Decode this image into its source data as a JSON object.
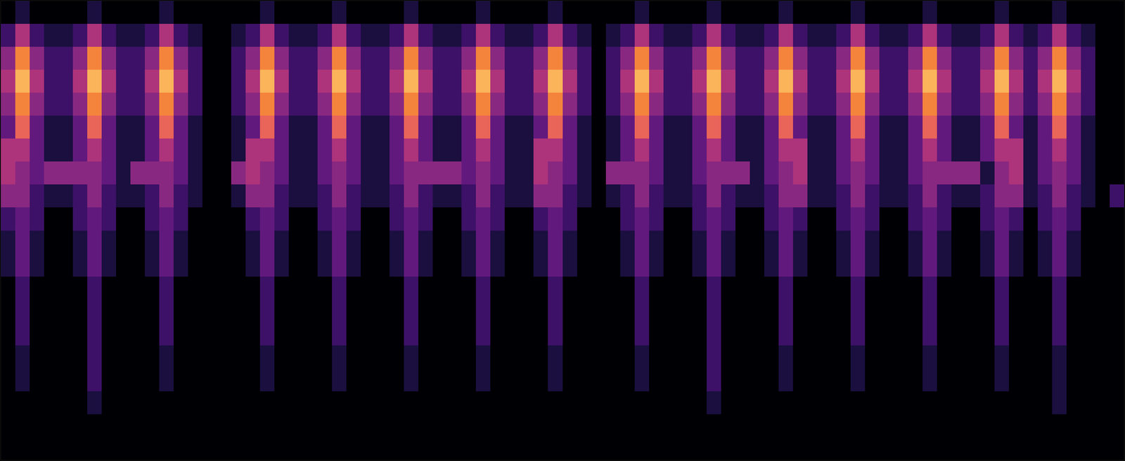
{
  "chart_data": {
    "type": "heatmap",
    "xlim": [
      -0.5,
      77.5
    ],
    "ylim": [
      19.5,
      -0.5
    ],
    "zlim": [
      0,
      9
    ],
    "tick_labels": false,
    "grid": false,
    "z": [
      [
        0,
        1,
        0,
        0,
        0,
        0,
        1,
        0,
        0,
        0,
        0,
        1,
        0,
        0,
        0,
        0,
        0,
        0,
        1,
        0,
        0,
        0,
        0,
        1,
        0,
        0,
        0,
        0,
        1,
        0,
        0,
        0,
        0,
        1,
        0,
        0,
        0,
        0,
        1,
        0,
        0,
        0,
        0,
        0,
        1,
        0,
        0,
        0,
        0,
        1,
        0,
        0,
        0,
        0,
        1,
        0,
        0,
        0,
        0,
        1,
        0,
        0,
        0,
        0,
        1,
        0,
        0,
        0,
        0,
        1,
        0,
        0,
        0,
        1,
        0,
        0,
        0,
        0
      ],
      [
        2,
        5,
        2,
        1,
        1,
        2,
        5,
        2,
        1,
        1,
        2,
        5,
        2,
        1,
        0,
        0,
        1,
        2,
        5,
        2,
        1,
        1,
        2,
        5,
        2,
        1,
        1,
        2,
        5,
        2,
        1,
        1,
        2,
        5,
        2,
        1,
        1,
        2,
        5,
        2,
        1,
        0,
        1,
        2,
        5,
        2,
        1,
        1,
        2,
        5,
        2,
        1,
        1,
        2,
        5,
        2,
        1,
        1,
        2,
        5,
        2,
        1,
        1,
        2,
        5,
        2,
        1,
        1,
        2,
        5,
        2,
        1,
        2,
        5,
        2,
        1,
        0,
        0
      ],
      [
        4,
        8,
        4,
        2,
        2,
        4,
        8,
        4,
        2,
        2,
        4,
        8,
        4,
        2,
        0,
        0,
        2,
        4,
        8,
        4,
        2,
        2,
        4,
        8,
        4,
        2,
        2,
        4,
        8,
        4,
        2,
        2,
        4,
        8,
        4,
        2,
        2,
        4,
        8,
        4,
        2,
        0,
        2,
        4,
        8,
        4,
        2,
        2,
        4,
        8,
        4,
        2,
        2,
        4,
        8,
        4,
        2,
        2,
        4,
        8,
        4,
        2,
        2,
        4,
        8,
        4,
        2,
        2,
        4,
        8,
        4,
        2,
        4,
        8,
        4,
        2,
        0,
        0
      ],
      [
        5,
        9,
        5,
        2,
        2,
        5,
        9,
        5,
        2,
        2,
        5,
        9,
        5,
        2,
        0,
        0,
        2,
        5,
        9,
        5,
        2,
        2,
        5,
        9,
        5,
        2,
        2,
        5,
        9,
        5,
        2,
        2,
        5,
        9,
        5,
        2,
        2,
        5,
        9,
        5,
        2,
        0,
        2,
        5,
        9,
        5,
        2,
        2,
        5,
        9,
        5,
        2,
        2,
        5,
        9,
        5,
        2,
        2,
        5,
        9,
        5,
        2,
        2,
        5,
        9,
        5,
        2,
        2,
        5,
        9,
        5,
        2,
        5,
        9,
        5,
        2,
        0,
        0
      ],
      [
        4,
        8,
        4,
        2,
        2,
        4,
        8,
        4,
        2,
        2,
        4,
        8,
        4,
        2,
        0,
        0,
        2,
        4,
        8,
        4,
        2,
        2,
        4,
        8,
        4,
        2,
        2,
        4,
        8,
        4,
        2,
        2,
        4,
        8,
        4,
        2,
        2,
        4,
        8,
        4,
        2,
        0,
        2,
        4,
        8,
        4,
        2,
        2,
        4,
        8,
        4,
        2,
        2,
        4,
        8,
        4,
        2,
        2,
        4,
        8,
        4,
        2,
        2,
        4,
        8,
        4,
        2,
        2,
        4,
        8,
        4,
        2,
        4,
        8,
        4,
        2,
        0,
        0
      ],
      [
        3,
        7,
        3,
        1,
        1,
        3,
        7,
        3,
        1,
        1,
        3,
        7,
        3,
        1,
        0,
        0,
        1,
        3,
        7,
        3,
        1,
        1,
        3,
        7,
        3,
        1,
        1,
        3,
        7,
        3,
        1,
        1,
        3,
        7,
        3,
        1,
        1,
        3,
        7,
        3,
        1,
        0,
        1,
        3,
        7,
        3,
        1,
        1,
        3,
        7,
        3,
        1,
        1,
        3,
        7,
        3,
        1,
        1,
        3,
        7,
        3,
        1,
        1,
        3,
        7,
        3,
        1,
        1,
        3,
        7,
        3,
        1,
        3,
        7,
        3,
        1,
        0,
        0
      ],
      [
        5,
        5,
        3,
        1,
        1,
        3,
        5,
        3,
        1,
        1,
        3,
        5,
        3,
        1,
        0,
        0,
        1,
        5,
        5,
        3,
        1,
        1,
        3,
        5,
        3,
        1,
        1,
        3,
        5,
        3,
        1,
        1,
        3,
        5,
        3,
        1,
        1,
        5,
        5,
        3,
        1,
        0,
        1,
        3,
        5,
        3,
        1,
        1,
        3,
        5,
        3,
        1,
        1,
        3,
        5,
        5,
        1,
        1,
        3,
        5,
        3,
        1,
        1,
        3,
        5,
        3,
        1,
        1,
        3,
        5,
        5,
        1,
        3,
        5,
        3,
        1,
        0,
        0
      ],
      [
        5,
        4,
        3,
        4,
        4,
        4,
        4,
        3,
        1,
        4,
        4,
        4,
        3,
        1,
        0,
        0,
        4,
        5,
        4,
        3,
        1,
        1,
        3,
        4,
        3,
        1,
        1,
        3,
        4,
        4,
        4,
        4,
        3,
        4,
        3,
        1,
        1,
        5,
        4,
        3,
        1,
        0,
        4,
        4,
        4,
        3,
        1,
        1,
        3,
        4,
        4,
        4,
        1,
        3,
        4,
        5,
        1,
        1,
        3,
        4,
        3,
        1,
        1,
        3,
        4,
        4,
        4,
        4,
        1,
        4,
        5,
        1,
        3,
        4,
        3,
        1,
        0,
        0
      ],
      [
        4,
        4,
        2,
        1,
        1,
        2,
        4,
        2,
        1,
        1,
        2,
        4,
        2,
        1,
        0,
        0,
        1,
        4,
        4,
        2,
        1,
        1,
        2,
        4,
        2,
        1,
        1,
        2,
        4,
        2,
        1,
        1,
        2,
        4,
        2,
        1,
        1,
        4,
        4,
        2,
        1,
        0,
        1,
        2,
        4,
        2,
        1,
        1,
        2,
        4,
        2,
        1,
        1,
        2,
        4,
        4,
        1,
        1,
        2,
        4,
        2,
        1,
        1,
        2,
        4,
        2,
        1,
        1,
        2,
        4,
        4,
        1,
        2,
        4,
        2,
        1,
        0,
        2
      ],
      [
        2,
        3,
        2,
        0,
        0,
        2,
        3,
        2,
        0,
        0,
        2,
        3,
        2,
        0,
        0,
        0,
        0,
        2,
        3,
        2,
        0,
        0,
        2,
        3,
        2,
        0,
        0,
        2,
        3,
        2,
        0,
        0,
        2,
        3,
        2,
        0,
        0,
        2,
        3,
        2,
        0,
        0,
        0,
        2,
        3,
        2,
        0,
        0,
        2,
        3,
        2,
        0,
        0,
        2,
        3,
        2,
        0,
        0,
        2,
        3,
        2,
        0,
        0,
        2,
        3,
        2,
        0,
        0,
        2,
        3,
        2,
        0,
        2,
        3,
        2,
        0,
        0,
        0
      ],
      [
        1,
        3,
        1,
        0,
        0,
        1,
        3,
        1,
        0,
        0,
        1,
        3,
        1,
        0,
        0,
        0,
        0,
        1,
        3,
        1,
        0,
        0,
        1,
        3,
        1,
        0,
        0,
        1,
        3,
        1,
        0,
        0,
        1,
        3,
        1,
        0,
        0,
        1,
        3,
        1,
        0,
        0,
        0,
        1,
        3,
        1,
        0,
        0,
        1,
        3,
        1,
        0,
        0,
        1,
        3,
        1,
        0,
        0,
        1,
        3,
        1,
        0,
        0,
        1,
        3,
        1,
        0,
        0,
        1,
        3,
        1,
        0,
        1,
        3,
        1,
        0,
        0,
        0
      ],
      [
        1,
        3,
        1,
        0,
        0,
        1,
        3,
        1,
        0,
        0,
        1,
        3,
        1,
        0,
        0,
        0,
        0,
        1,
        3,
        1,
        0,
        0,
        1,
        3,
        1,
        0,
        0,
        1,
        3,
        1,
        0,
        0,
        1,
        3,
        1,
        0,
        0,
        1,
        3,
        1,
        0,
        0,
        0,
        1,
        3,
        1,
        0,
        0,
        1,
        3,
        1,
        0,
        0,
        1,
        3,
        1,
        0,
        0,
        1,
        3,
        1,
        0,
        0,
        1,
        3,
        1,
        0,
        0,
        1,
        3,
        1,
        0,
        1,
        3,
        1,
        0,
        0,
        0
      ],
      [
        0,
        2,
        0,
        0,
        0,
        0,
        2,
        0,
        0,
        0,
        0,
        2,
        0,
        0,
        0,
        0,
        0,
        0,
        2,
        0,
        0,
        0,
        0,
        2,
        0,
        0,
        0,
        0,
        2,
        0,
        0,
        0,
        0,
        2,
        0,
        0,
        0,
        0,
        2,
        0,
        0,
        0,
        0,
        0,
        2,
        0,
        0,
        0,
        0,
        2,
        0,
        0,
        0,
        0,
        2,
        0,
        0,
        0,
        0,
        2,
        0,
        0,
        0,
        0,
        2,
        0,
        0,
        0,
        0,
        2,
        0,
        0,
        0,
        2,
        0,
        0,
        0,
        0
      ],
      [
        0,
        2,
        0,
        0,
        0,
        0,
        2,
        0,
        0,
        0,
        0,
        2,
        0,
        0,
        0,
        0,
        0,
        0,
        2,
        0,
        0,
        0,
        0,
        2,
        0,
        0,
        0,
        0,
        2,
        0,
        0,
        0,
        0,
        2,
        0,
        0,
        0,
        0,
        2,
        0,
        0,
        0,
        0,
        0,
        2,
        0,
        0,
        0,
        0,
        2,
        0,
        0,
        0,
        0,
        2,
        0,
        0,
        0,
        0,
        2,
        0,
        0,
        0,
        0,
        2,
        0,
        0,
        0,
        0,
        2,
        0,
        0,
        0,
        2,
        0,
        0,
        0,
        0
      ],
      [
        0,
        2,
        0,
        0,
        0,
        0,
        2,
        0,
        0,
        0,
        0,
        2,
        0,
        0,
        0,
        0,
        0,
        0,
        2,
        0,
        0,
        0,
        0,
        2,
        0,
        0,
        0,
        0,
        2,
        0,
        0,
        0,
        0,
        2,
        0,
        0,
        0,
        0,
        2,
        0,
        0,
        0,
        0,
        0,
        2,
        0,
        0,
        0,
        0,
        2,
        0,
        0,
        0,
        0,
        2,
        0,
        0,
        0,
        0,
        2,
        0,
        0,
        0,
        0,
        2,
        0,
        0,
        0,
        0,
        2,
        0,
        0,
        0,
        2,
        0,
        0,
        0,
        0
      ],
      [
        0,
        1,
        0,
        0,
        0,
        0,
        2,
        0,
        0,
        0,
        0,
        1,
        0,
        0,
        0,
        0,
        0,
        0,
        1,
        0,
        0,
        0,
        0,
        1,
        0,
        0,
        0,
        0,
        1,
        0,
        0,
        0,
        0,
        1,
        0,
        0,
        0,
        0,
        1,
        0,
        0,
        0,
        0,
        0,
        1,
        0,
        0,
        0,
        0,
        2,
        0,
        0,
        0,
        0,
        1,
        0,
        0,
        0,
        0,
        1,
        0,
        0,
        0,
        0,
        1,
        0,
        0,
        0,
        0,
        1,
        0,
        0,
        0,
        1,
        0,
        0,
        0,
        0
      ],
      [
        0,
        1,
        0,
        0,
        0,
        0,
        2,
        0,
        0,
        0,
        0,
        1,
        0,
        0,
        0,
        0,
        0,
        0,
        1,
        0,
        0,
        0,
        0,
        1,
        0,
        0,
        0,
        0,
        1,
        0,
        0,
        0,
        0,
        1,
        0,
        0,
        0,
        0,
        1,
        0,
        0,
        0,
        0,
        0,
        1,
        0,
        0,
        0,
        0,
        2,
        0,
        0,
        0,
        0,
        1,
        0,
        0,
        0,
        0,
        1,
        0,
        0,
        0,
        0,
        1,
        0,
        0,
        0,
        0,
        1,
        0,
        0,
        0,
        1,
        0,
        0,
        0,
        0
      ],
      [
        0,
        0,
        0,
        0,
        0,
        0,
        1,
        0,
        0,
        0,
        0,
        0,
        0,
        0,
        0,
        0,
        0,
        0,
        0,
        0,
        0,
        0,
        0,
        0,
        0,
        0,
        0,
        0,
        0,
        0,
        0,
        0,
        0,
        0,
        0,
        0,
        0,
        0,
        0,
        0,
        0,
        0,
        0,
        0,
        0,
        0,
        0,
        0,
        0,
        1,
        0,
        0,
        0,
        0,
        0,
        0,
        0,
        0,
        0,
        0,
        0,
        0,
        0,
        0,
        0,
        0,
        0,
        0,
        0,
        0,
        0,
        0,
        0,
        1,
        0,
        0,
        0,
        0
      ],
      [
        0,
        0,
        0,
        0,
        0,
        0,
        0,
        0,
        0,
        0,
        0,
        0,
        0,
        0,
        0,
        0,
        0,
        0,
        0,
        0,
        0,
        0,
        0,
        0,
        0,
        0,
        0,
        0,
        0,
        0,
        0,
        0,
        0,
        0,
        0,
        0,
        0,
        0,
        0,
        0,
        0,
        0,
        0,
        0,
        0,
        0,
        0,
        0,
        0,
        0,
        0,
        0,
        0,
        0,
        0,
        0,
        0,
        0,
        0,
        0,
        0,
        0,
        0,
        0,
        0,
        0,
        0,
        0,
        0,
        0,
        0,
        0,
        0,
        0,
        0,
        0,
        0,
        0
      ],
      [
        0,
        0,
        0,
        0,
        0,
        0,
        0,
        0,
        0,
        0,
        0,
        0,
        0,
        0,
        0,
        0,
        0,
        0,
        0,
        0,
        0,
        0,
        0,
        0,
        0,
        0,
        0,
        0,
        0,
        0,
        0,
        0,
        0,
        0,
        0,
        0,
        0,
        0,
        0,
        0,
        0,
        0,
        0,
        0,
        0,
        0,
        0,
        0,
        0,
        0,
        0,
        0,
        0,
        0,
        0,
        0,
        0,
        0,
        0,
        0,
        0,
        0,
        0,
        0,
        0,
        0,
        0,
        0,
        0,
        0,
        0,
        0,
        0,
        0,
        0,
        0,
        0,
        0
      ]
    ]
  }
}
